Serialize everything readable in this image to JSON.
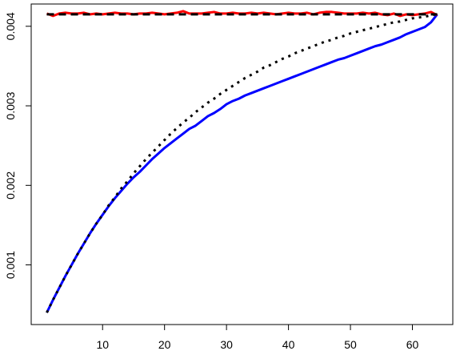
{
  "chart_data": {
    "type": "line",
    "x": [
      1,
      2,
      3,
      4,
      5,
      6,
      7,
      8,
      9,
      10,
      11,
      12,
      13,
      14,
      15,
      16,
      17,
      18,
      19,
      20,
      21,
      22,
      23,
      24,
      25,
      26,
      27,
      28,
      29,
      30,
      31,
      32,
      33,
      34,
      35,
      36,
      37,
      38,
      39,
      40,
      41,
      42,
      43,
      44,
      45,
      46,
      47,
      48,
      49,
      50,
      51,
      52,
      53,
      54,
      55,
      56,
      57,
      58,
      59,
      60,
      61,
      62,
      63,
      64
    ],
    "xlim": [
      -1.52,
      66.52
    ],
    "xticks": [
      10,
      20,
      30,
      40,
      50,
      60
    ],
    "ylim": [
      0.00025,
      0.00428
    ],
    "yticks": [
      0.001,
      0.002,
      0.003,
      0.004
    ],
    "series": [
      {
        "color": "#0000ff",
        "dash": "solid",
        "values": [
          0.0004,
          0.00056,
          0.00071,
          0.00086,
          0.001,
          0.00114,
          0.00127,
          0.0014,
          0.00152,
          0.00163,
          0.00174,
          0.00184,
          0.00193,
          0.00202,
          0.0021,
          0.00217,
          0.00225,
          0.00233,
          0.0024,
          0.00247,
          0.00253,
          0.00259,
          0.00265,
          0.00271,
          0.00275,
          0.00281,
          0.00287,
          0.00291,
          0.00296,
          0.00302,
          0.00306,
          0.00309,
          0.00313,
          0.00316,
          0.00319,
          0.00322,
          0.00325,
          0.00328,
          0.00331,
          0.00334,
          0.00337,
          0.0034,
          0.00343,
          0.00346,
          0.00349,
          0.00352,
          0.00355,
          0.00358,
          0.0036,
          0.00363,
          0.00366,
          0.00369,
          0.00372,
          0.00375,
          0.00377,
          0.0038,
          0.00383,
          0.00386,
          0.0039,
          0.00393,
          0.00396,
          0.00399,
          0.00405,
          0.00415
        ]
      },
      {
        "color": "#000000",
        "dash": "dotted",
        "values": [
          0.0004,
          0.00056,
          0.00071,
          0.00086,
          0.001,
          0.00114,
          0.00127,
          0.0014,
          0.00152,
          0.00163,
          0.00175,
          0.00185,
          0.00196,
          0.00205,
          0.00215,
          0.00224,
          0.00233,
          0.00241,
          0.00249,
          0.00257,
          0.00265,
          0.00272,
          0.00279,
          0.00285,
          0.00292,
          0.00298,
          0.00304,
          0.00309,
          0.00315,
          0.0032,
          0.00325,
          0.0033,
          0.00335,
          0.00339,
          0.00343,
          0.00348,
          0.00351,
          0.00355,
          0.00359,
          0.00362,
          0.00366,
          0.00369,
          0.00372,
          0.00375,
          0.00378,
          0.00381,
          0.00383,
          0.00386,
          0.00388,
          0.00391,
          0.00393,
          0.00395,
          0.00397,
          0.00399,
          0.00401,
          0.00403,
          0.00405,
          0.00406,
          0.00408,
          0.0041,
          0.00411,
          0.00412,
          0.00414,
          0.00415
        ]
      },
      {
        "color": "#ff0000",
        "dash": "solid",
        "values": [
          0.00416,
          0.00413,
          0.00416,
          0.00417,
          0.00416,
          0.00416,
          0.00417,
          0.00415,
          0.00416,
          0.00415,
          0.00416,
          0.00417,
          0.00416,
          0.00416,
          0.00415,
          0.00416,
          0.00416,
          0.00417,
          0.00416,
          0.00415,
          0.00416,
          0.00417,
          0.00419,
          0.00416,
          0.00416,
          0.00416,
          0.00417,
          0.00418,
          0.00416,
          0.00416,
          0.00417,
          0.00416,
          0.00416,
          0.00417,
          0.00416,
          0.00417,
          0.00416,
          0.00415,
          0.00416,
          0.00417,
          0.00416,
          0.00416,
          0.00417,
          0.00415,
          0.00417,
          0.00418,
          0.00418,
          0.00417,
          0.00416,
          0.00416,
          0.00416,
          0.00417,
          0.00416,
          0.00417,
          0.00415,
          0.00414,
          0.00416,
          0.00413,
          0.00415,
          0.00414,
          0.00415,
          0.00416,
          0.00418,
          0.00414
        ]
      },
      {
        "color": "#000000",
        "dash": "dashed",
        "values": [
          0.00415,
          0.00415,
          0.00415,
          0.00415,
          0.00415,
          0.00415,
          0.00415,
          0.00415,
          0.00415,
          0.00415,
          0.00415,
          0.00415,
          0.00415,
          0.00415,
          0.00415,
          0.00415,
          0.00415,
          0.00415,
          0.00415,
          0.00415,
          0.00415,
          0.00415,
          0.00415,
          0.00415,
          0.00415,
          0.00415,
          0.00415,
          0.00415,
          0.00415,
          0.00415,
          0.00415,
          0.00415,
          0.00415,
          0.00415,
          0.00415,
          0.00415,
          0.00415,
          0.00415,
          0.00415,
          0.00415,
          0.00415,
          0.00415,
          0.00415,
          0.00415,
          0.00415,
          0.00415,
          0.00415,
          0.00415,
          0.00415,
          0.00415,
          0.00415,
          0.00415,
          0.00415,
          0.00415,
          0.00415,
          0.00415,
          0.00415,
          0.00415,
          0.00415,
          0.00415,
          0.00415,
          0.00415,
          0.00415,
          0.00415
        ]
      }
    ]
  }
}
